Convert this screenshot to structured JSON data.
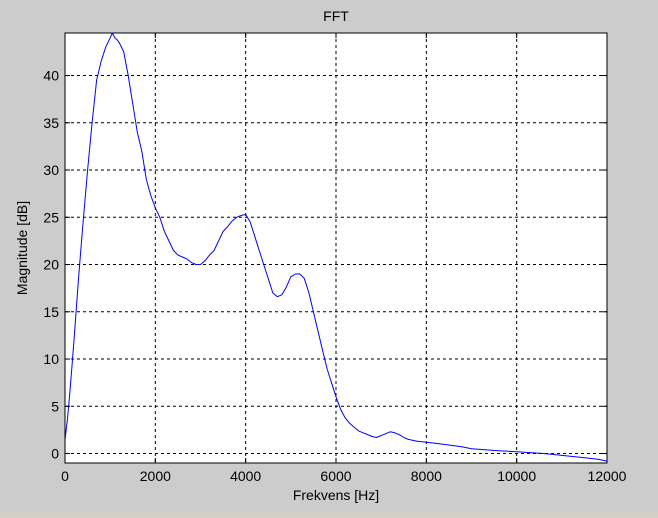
{
  "chart_data": {
    "type": "line",
    "title": "FFT",
    "xlabel": "Frekvens [Hz]",
    "ylabel": "Magnitude [dB]",
    "xlim": [
      0,
      12000
    ],
    "ylim": [
      -1,
      44.5
    ],
    "xticks": [
      0,
      2000,
      4000,
      6000,
      8000,
      10000,
      12000
    ],
    "yticks": [
      0,
      5,
      10,
      15,
      20,
      25,
      30,
      35,
      40
    ],
    "grid": true,
    "grid_style": "dashed",
    "series": [
      {
        "color": "#0000ff",
        "x": [
          0,
          50,
          100,
          150,
          200,
          300,
          400,
          500,
          600,
          700,
          800,
          900,
          1000,
          1050,
          1100,
          1150,
          1200,
          1300,
          1400,
          1500,
          1600,
          1700,
          1800,
          1900,
          2000,
          2100,
          2200,
          2300,
          2400,
          2500,
          2600,
          2700,
          2800,
          2900,
          3000,
          3100,
          3200,
          3300,
          3400,
          3500,
          3600,
          3700,
          3800,
          3900,
          4000,
          4100,
          4200,
          4300,
          4400,
          4500,
          4600,
          4700,
          4800,
          4900,
          5000,
          5100,
          5200,
          5300,
          5400,
          5500,
          5600,
          5700,
          5800,
          5900,
          6000,
          6100,
          6200,
          6300,
          6400,
          6500,
          6600,
          6700,
          6800,
          6900,
          7000,
          7100,
          7200,
          7300,
          7400,
          7500,
          7600,
          7800,
          8000,
          8200,
          8500,
          8800,
          9000,
          9300,
          9600,
          10000,
          10300,
          10600,
          11000,
          11400,
          11800,
          12000
        ],
        "y": [
          1.5,
          3.5,
          6,
          9,
          12,
          18.5,
          24.5,
          30,
          35,
          39.5,
          41.5,
          43,
          44,
          44.5,
          44,
          43.8,
          43.5,
          42.5,
          40,
          37,
          34,
          32,
          29,
          27.3,
          26,
          25,
          23.5,
          22.5,
          21.5,
          21,
          20.8,
          20.6,
          20.2,
          20,
          20,
          20.4,
          21,
          21.5,
          22.5,
          23.5,
          24,
          24.6,
          25,
          25.2,
          25.3,
          24.5,
          23,
          21.5,
          20,
          18.5,
          17,
          16.6,
          16.8,
          17.6,
          18.7,
          19,
          19,
          18.5,
          17,
          15,
          13,
          11,
          9,
          7.5,
          6,
          4.7,
          3.8,
          3.2,
          2.8,
          2.4,
          2.2,
          2,
          1.8,
          1.7,
          1.9,
          2.1,
          2.3,
          2.2,
          2,
          1.7,
          1.5,
          1.3,
          1.2,
          1.1,
          0.9,
          0.7,
          0.5,
          0.4,
          0.3,
          0.2,
          0.1,
          0,
          -0.2,
          -0.4,
          -0.6,
          -0.8
        ]
      }
    ]
  }
}
